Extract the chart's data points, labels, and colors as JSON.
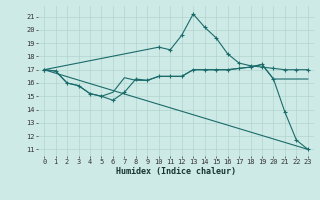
{
  "title": "",
  "xlabel": "Humidex (Indice chaleur)",
  "ylabel": "",
  "background_color": "#ceeae6",
  "grid_color": "#b0d4cf",
  "line_color": "#1a6b6b",
  "xlim": [
    -0.5,
    23.5
  ],
  "ylim": [
    10.5,
    21.8
  ],
  "yticks": [
    11,
    12,
    13,
    14,
    15,
    16,
    17,
    18,
    19,
    20,
    21
  ],
  "xticks": [
    0,
    1,
    2,
    3,
    4,
    5,
    6,
    7,
    8,
    9,
    10,
    11,
    12,
    13,
    14,
    15,
    16,
    17,
    18,
    19,
    20,
    21,
    22,
    23
  ],
  "series": [
    {
      "x": [
        0,
        1,
        2,
        3,
        4,
        5,
        6,
        7,
        8,
        9,
        10,
        11,
        12,
        13,
        14,
        15,
        16,
        17,
        18,
        19,
        20,
        21,
        22,
        23
      ],
      "y": [
        17.0,
        16.9,
        16.0,
        15.8,
        15.2,
        15.0,
        15.3,
        16.4,
        16.2,
        16.2,
        16.5,
        16.5,
        16.5,
        17.0,
        17.0,
        17.0,
        17.0,
        17.1,
        17.2,
        17.4,
        16.3,
        16.3,
        16.3,
        16.3
      ],
      "marker": null,
      "lw": 0.8
    },
    {
      "x": [
        0,
        1,
        2,
        3,
        4,
        5,
        6,
        7,
        8,
        9,
        10,
        11,
        12,
        13,
        14,
        15,
        16,
        17,
        18,
        19,
        20,
        21,
        22,
        23
      ],
      "y": [
        17.0,
        16.9,
        16.0,
        15.8,
        15.2,
        15.0,
        14.7,
        15.3,
        16.3,
        16.2,
        16.5,
        16.5,
        16.5,
        17.0,
        17.0,
        17.0,
        17.0,
        17.1,
        17.2,
        17.4,
        16.3,
        13.8,
        11.7,
        11.0
      ],
      "marker": "+",
      "lw": 0.8
    },
    {
      "x": [
        0,
        10,
        11,
        12,
        13,
        14,
        15,
        16,
        17,
        18,
        19,
        20,
        21,
        22,
        23
      ],
      "y": [
        17.0,
        18.7,
        18.5,
        19.6,
        21.2,
        20.2,
        19.4,
        18.2,
        17.5,
        17.3,
        17.2,
        17.1,
        17.0,
        17.0,
        17.0
      ],
      "marker": "+",
      "lw": 0.8
    },
    {
      "x": [
        0,
        23
      ],
      "y": [
        17.0,
        11.0
      ],
      "marker": null,
      "lw": 0.8
    }
  ]
}
